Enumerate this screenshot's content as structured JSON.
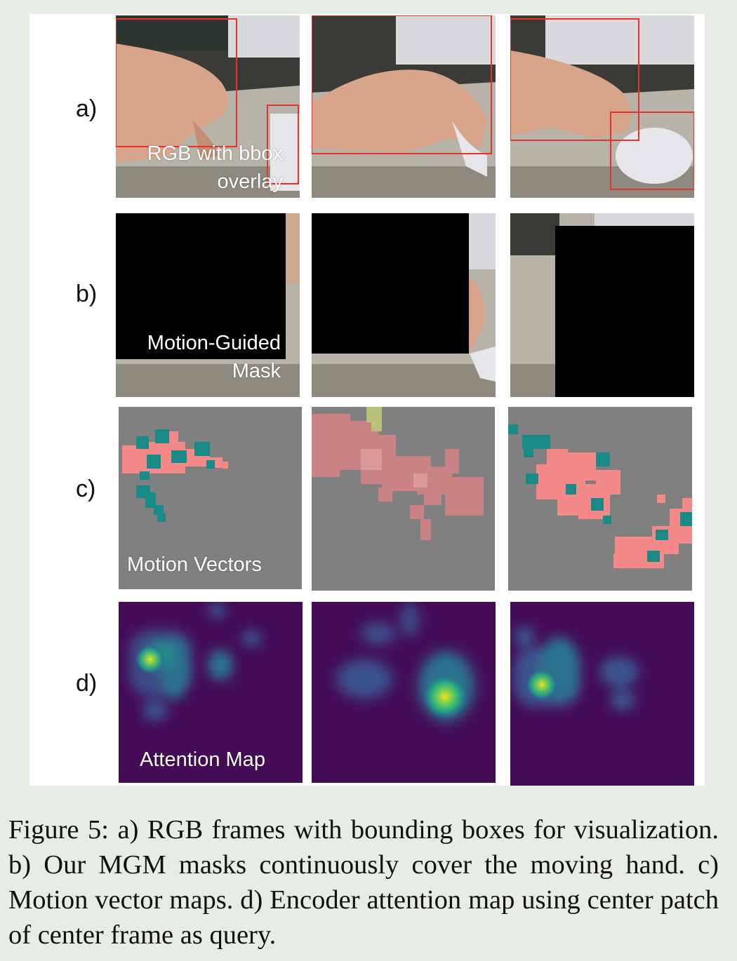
{
  "figure": {
    "rows": [
      {
        "label": "a)",
        "overlay_line1": "RGB with bbox",
        "overlay_line2": "overlay"
      },
      {
        "label": "b)",
        "overlay_line1": "Motion-Guided",
        "overlay_line2": "Mask"
      },
      {
        "label": "c)",
        "overlay_line1": "Motion Vectors"
      },
      {
        "label": "d)",
        "overlay_line1": "Attention Map"
      }
    ],
    "colors": {
      "bbox": "#e8322c",
      "mask": "#000000",
      "motion_background": "#808080",
      "motion_pink": "#f4898a",
      "motion_teal": "#1a8a86",
      "attention_background": "#440c57",
      "attention_peak": "#f0e21e"
    }
  },
  "caption": "Figure 5: a) RGB frames with bounding boxes for visualization. b) Our MGM masks continuously cover the moving hand. c) Motion vector maps. d) Encoder attention map using center patch of center frame as query."
}
